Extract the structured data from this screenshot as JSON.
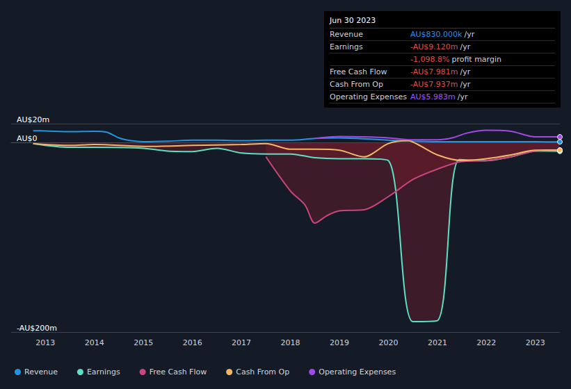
{
  "chart_data": {
    "type": "line",
    "xlim": [
      2012.3,
      2023.5
    ],
    "xticks": [
      2013,
      2014,
      2015,
      2016,
      2017,
      2018,
      2019,
      2020,
      2021,
      2022,
      2023
    ],
    "ylim": [
      -200,
      20
    ],
    "yticks": [
      {
        "value": 20,
        "label": "AU$20m"
      },
      {
        "value": 0,
        "label": "AU$0"
      },
      {
        "value": -200,
        "label": "-AU$200m"
      }
    ],
    "grid": true,
    "legend": "bottom",
    "series": [
      {
        "name": "Revenue",
        "color": "#2394df",
        "type": "line",
        "x": [
          2012.75,
          2013,
          2013.5,
          2014,
          2014.25,
          2014.5,
          2014.75,
          2015,
          2015.5,
          2016,
          2016.5,
          2017,
          2017.5,
          2018,
          2018.5,
          2019,
          2019.5,
          2020,
          2020.5,
          2021,
          2021.5,
          2022,
          2022.5,
          2023,
          2023.5
        ],
        "values": [
          12.5,
          12.3,
          11.5,
          12,
          11,
          5,
          2,
          1,
          1.5,
          2.5,
          2.5,
          2,
          2.5,
          2.5,
          4.5,
          5,
          4,
          2.5,
          1.5,
          1,
          1,
          1,
          0.9,
          0.85,
          0.83
        ]
      },
      {
        "name": "Earnings",
        "color": "#5ce1c5",
        "type": "area",
        "x": [
          2012.75,
          2013.5,
          2014,
          2015,
          2015.5,
          2016,
          2016.5,
          2017,
          2017.5,
          2018,
          2018.5,
          2019,
          2019.5,
          2020,
          2020.5,
          2021,
          2021.45,
          2022,
          2022.5,
          2023,
          2023.5
        ],
        "values": [
          -1,
          -5,
          -5,
          -6,
          -9,
          -9.5,
          -6,
          -11,
          -12,
          -12,
          -16,
          -17,
          -17,
          -19,
          -189,
          -188,
          -18,
          -19,
          -15,
          -9,
          -9.12
        ]
      },
      {
        "name": "Free Cash Flow",
        "color": "#c9457c",
        "type": "area",
        "x": [
          2017.5,
          2018,
          2018.3,
          2018.5,
          2018.75,
          2019,
          2019.5,
          2020,
          2020.5,
          2021,
          2021.5,
          2022,
          2022.5,
          2023,
          2023.5
        ],
        "values": [
          -15,
          -51,
          -66,
          -85,
          -77,
          -72,
          -71,
          -57,
          -39,
          -28,
          -20,
          -19,
          -15,
          -9,
          -7.981
        ]
      },
      {
        "name": "Cash From Op",
        "color": "#f5b567",
        "type": "line",
        "x": [
          2012.75,
          2013.5,
          2014,
          2015,
          2016,
          2017,
          2017.5,
          2018,
          2018.5,
          2019,
          2019.5,
          2020,
          2020.4,
          2020.6,
          2021,
          2021.5,
          2022,
          2022.5,
          2023,
          2023.5
        ],
        "values": [
          -1,
          -3,
          -2,
          -4,
          -3,
          -2,
          -1,
          -7,
          -7,
          -8,
          -15,
          -1,
          2,
          -2,
          -13,
          -19,
          -17,
          -13,
          -8,
          -7.937
        ]
      },
      {
        "name": "Operating Expenses",
        "color": "#a148e6",
        "type": "line",
        "x": [
          2018.5,
          2019,
          2019.5,
          2020,
          2020.5,
          2021,
          2021.3,
          2021.6,
          2022,
          2022.5,
          2023,
          2023.5
        ],
        "values": [
          4.5,
          6.5,
          6,
          5,
          3,
          3,
          5,
          10,
          13,
          12,
          6,
          5.983
        ]
      }
    ],
    "annotation": {
      "title": "Jun 30 2023",
      "rows": [
        {
          "label": "Revenue",
          "value": "AU$830.000k",
          "unit": "/yr",
          "color": "#2d8ee8"
        },
        {
          "label": "Earnings",
          "value": "-AU$9.120m",
          "unit": "/yr",
          "color": "#e34b4b"
        },
        {
          "value": "-1,098.8%",
          "unit": "profit margin",
          "color": "#e34b4b"
        },
        {
          "label": "Free Cash Flow",
          "value": "-AU$7.981m",
          "unit": "/yr",
          "color": "#e34b4b"
        },
        {
          "label": "Cash From Op",
          "value": "-AU$7.937m",
          "unit": "/yr",
          "color": "#e34b4b"
        },
        {
          "label": "Operating Expenses",
          "value": "AU$5.983m",
          "unit": "/yr",
          "color": "#a855f7"
        }
      ]
    }
  }
}
